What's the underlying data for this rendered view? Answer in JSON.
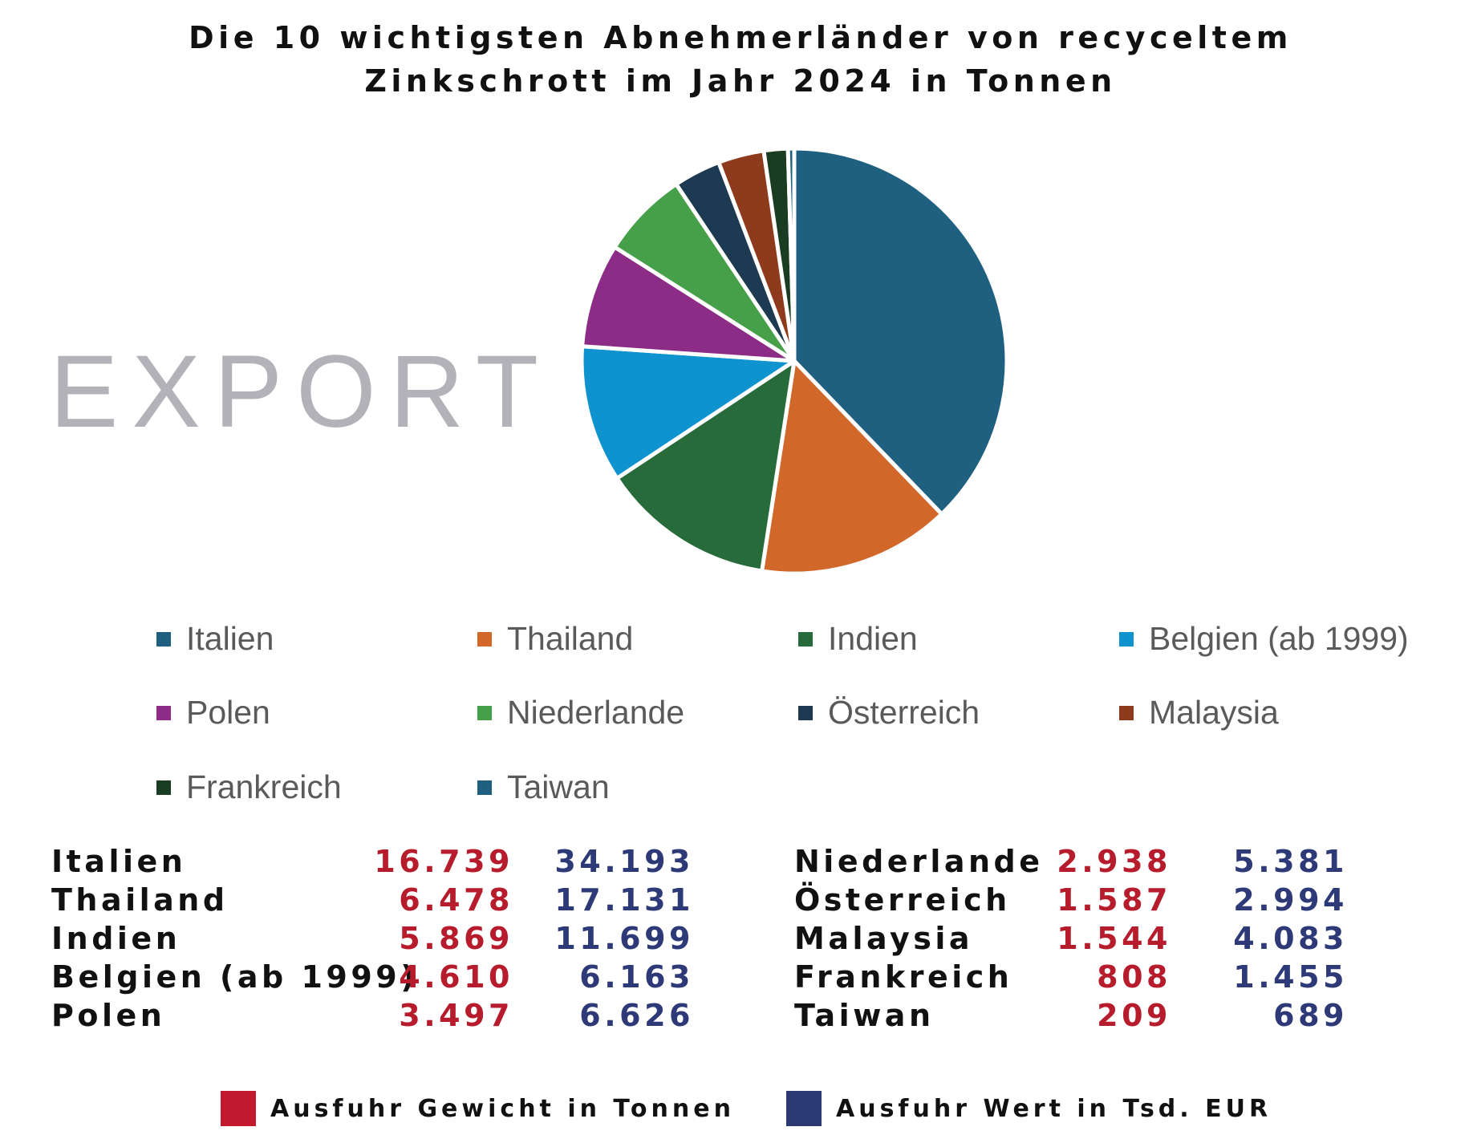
{
  "title": {
    "line1": "Die 10 wichtigsten Abnehmerländer von recyceltem",
    "line2": "Zinkschrott im Jahr 2024 in Tonnen"
  },
  "watermark": "EXPORT",
  "chart_data": {
    "type": "pie",
    "title": "Die 10 wichtigsten Abnehmerländer von recyceltem Zinkschrott im Jahr 2024 in Tonnen",
    "unit": "Tonnen",
    "start": "12 o'clock, clockwise",
    "slices": [
      {
        "label": "Italien",
        "value": 16739,
        "color": "#1f5f80"
      },
      {
        "label": "Thailand",
        "value": 6478,
        "color": "#d2672a"
      },
      {
        "label": "Indien",
        "value": 5869,
        "color": "#276b3a"
      },
      {
        "label": "Belgien (ab 1999)",
        "value": 4610,
        "color": "#0f93cf"
      },
      {
        "label": "Polen",
        "value": 3497,
        "color": "#8c2c86"
      },
      {
        "label": "Niederlande",
        "value": 2938,
        "color": "#46a04a"
      },
      {
        "label": "Österreich",
        "value": 1587,
        "color": "#1e3a52"
      },
      {
        "label": "Malaysia",
        "value": 1544,
        "color": "#8e3a1c"
      },
      {
        "label": "Frankreich",
        "value": 808,
        "color": "#1a3c22"
      },
      {
        "label": "Taiwan",
        "value": 209,
        "color": "#1f5f80"
      }
    ],
    "legend_position": "bottom"
  },
  "legend": [
    {
      "label": "Italien",
      "color": "#1f5f80"
    },
    {
      "label": "Thailand",
      "color": "#d2672a"
    },
    {
      "label": "Indien",
      "color": "#276b3a"
    },
    {
      "label": "Belgien (ab 1999)",
      "color": "#0f93cf"
    },
    {
      "label": "Polen",
      "color": "#8c2c86"
    },
    {
      "label": "Niederlande",
      "color": "#46a04a"
    },
    {
      "label": "Österreich",
      "color": "#1e3a52"
    },
    {
      "label": "Malaysia",
      "color": "#8e3a1c"
    },
    {
      "label": "Frankreich",
      "color": "#1a3c22"
    },
    {
      "label": "Taiwan",
      "color": "#1f5f80"
    }
  ],
  "table": {
    "left": [
      {
        "country": "Italien",
        "weight": "16.739",
        "value": "34.193"
      },
      {
        "country": "Thailand",
        "weight": "6.478",
        "value": "17.131"
      },
      {
        "country": "Indien",
        "weight": "5.869",
        "value": "11.699"
      },
      {
        "country": "Belgien (ab 1999)",
        "weight": "4.610",
        "value": "6.163"
      },
      {
        "country": "Polen",
        "weight": "3.497",
        "value": "6.626"
      }
    ],
    "right": [
      {
        "country": "Niederlande",
        "weight": "2.938",
        "value": "5.381"
      },
      {
        "country": "Österreich",
        "weight": "1.587",
        "value": "2.994"
      },
      {
        "country": "Malaysia",
        "weight": "1.544",
        "value": "4.083"
      },
      {
        "country": "Frankreich",
        "weight": "808",
        "value": "1.455"
      },
      {
        "country": "Taiwan",
        "weight": "209",
        "value": "689"
      }
    ]
  },
  "bottom_legend": {
    "weight_label": "Ausfuhr Gewicht in Tonnen",
    "weight_color": "#c2192e",
    "value_label": "Ausfuhr Wert in Tsd. EUR",
    "value_color": "#2b3a72"
  }
}
